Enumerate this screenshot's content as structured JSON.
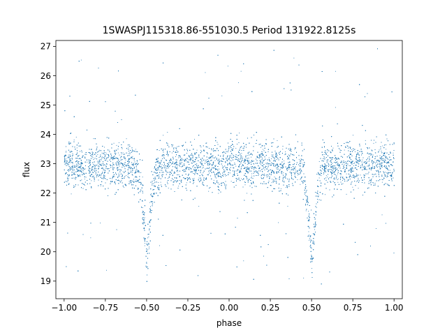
{
  "chart_data": {
    "type": "scatter",
    "title": "1SWASPJ115318.86-551030.5 Period 131922.8125s",
    "xlabel": "phase",
    "ylabel": "flux",
    "xlim": [
      -1.05,
      1.05
    ],
    "ylim": [
      18.4,
      27.2
    ],
    "xticks": [
      -1.0,
      -0.75,
      -0.5,
      -0.25,
      0.0,
      0.25,
      0.5,
      0.75,
      1.0
    ],
    "xtick_labels": [
      "−1.00",
      "−0.75",
      "−0.50",
      "−0.25",
      "0.00",
      "0.25",
      "0.50",
      "0.75",
      "1.00"
    ],
    "yticks": [
      19,
      20,
      21,
      22,
      23,
      24,
      25,
      26,
      27
    ],
    "ytick_labels": [
      "19",
      "20",
      "21",
      "22",
      "23",
      "24",
      "25",
      "26",
      "27"
    ],
    "grid": false,
    "legend": "none",
    "marker_color": "#1f77b4",
    "series": [
      {
        "x": [
          -1.0,
          -0.9,
          -0.8,
          -0.7,
          -0.6,
          -0.56,
          -0.53,
          -0.51,
          -0.5,
          -0.49,
          -0.47,
          -0.44,
          -0.4,
          -0.3,
          -0.2,
          -0.1,
          0.0,
          0.1,
          0.2,
          0.3,
          0.4,
          0.44,
          0.47,
          0.49,
          0.5,
          0.51,
          0.53,
          0.56,
          0.6,
          0.7,
          0.8,
          0.9,
          1.0
        ],
        "y": [
          22.95,
          22.95,
          22.95,
          22.95,
          22.95,
          22.85,
          21.9,
          20.4,
          19.6,
          20.4,
          21.9,
          22.85,
          22.95,
          22.95,
          22.95,
          22.95,
          22.95,
          22.95,
          22.95,
          22.95,
          22.95,
          22.85,
          21.9,
          20.4,
          19.6,
          20.4,
          21.9,
          22.85,
          22.95,
          22.95,
          22.95,
          22.95,
          22.95
        ]
      }
    ]
  }
}
